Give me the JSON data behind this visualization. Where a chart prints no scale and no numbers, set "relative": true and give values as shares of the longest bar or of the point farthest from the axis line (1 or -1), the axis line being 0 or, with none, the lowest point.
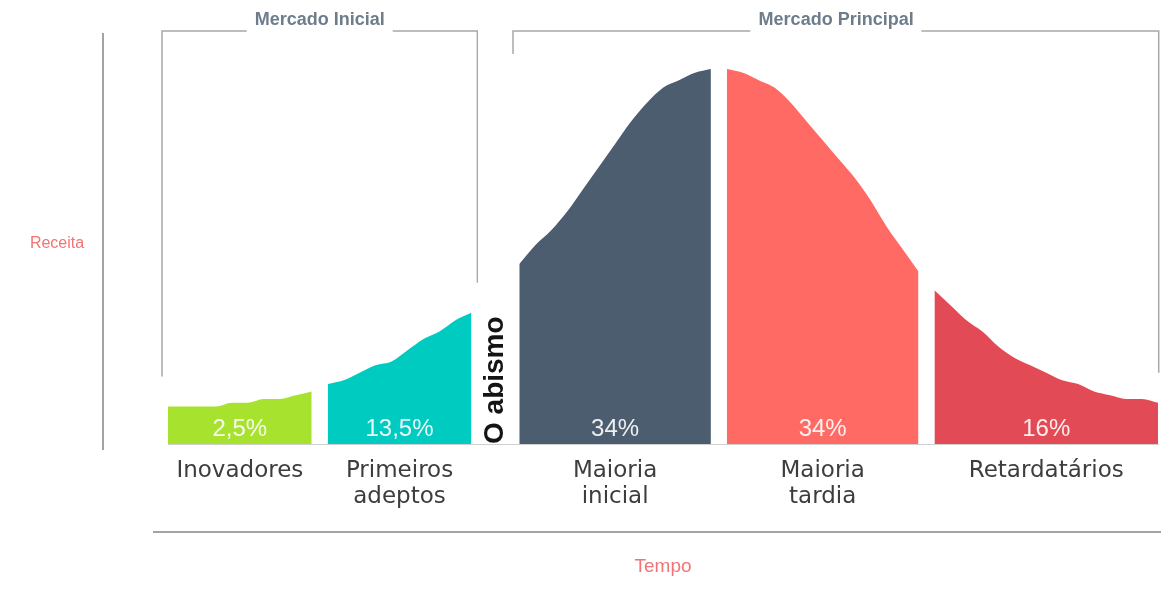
{
  "chart_data": {
    "type": "area",
    "relative": true,
    "categories": [
      null,
      null,
      null,
      null,
      null,
      null,
      null,
      null,
      null,
      null,
      null,
      null,
      null,
      null,
      null,
      null,
      null,
      null,
      null,
      null,
      null,
      null,
      null,
      null,
      null,
      null,
      null,
      null,
      null,
      null,
      null,
      null,
      null,
      null,
      null,
      null,
      null,
      null,
      null,
      null,
      null,
      null,
      null,
      null,
      null,
      null,
      null,
      null,
      null,
      null,
      null,
      null,
      null,
      null,
      null,
      null,
      null,
      null,
      null,
      null,
      null,
      null,
      null
    ],
    "series": [
      {
        "name": "Inovadores",
        "color": "#a6e22e",
        "values": [
          0.1,
          0.1,
          0.1,
          0.1,
          0.11,
          0.11,
          0.12,
          0.12,
          0.13,
          0.14,
          null,
          null,
          null,
          null,
          null,
          null,
          null,
          null,
          null,
          null,
          null,
          null,
          null,
          null,
          null,
          null,
          null,
          null,
          null,
          null,
          null,
          null,
          null,
          null,
          null,
          null,
          null,
          null,
          null,
          null,
          null,
          null,
          null,
          null,
          null,
          null,
          null,
          null,
          null,
          null,
          null,
          null,
          null,
          null,
          null,
          null,
          null,
          null,
          null,
          null,
          null,
          null,
          null
        ]
      },
      {
        "name": "Primeiros adeptos",
        "color": "#00cbc0",
        "values": [
          null,
          null,
          null,
          null,
          null,
          null,
          null,
          null,
          null,
          null,
          0.16,
          0.17,
          0.19,
          0.21,
          0.22,
          0.25,
          0.28,
          0.3,
          0.33,
          0.35,
          null,
          null,
          null,
          null,
          null,
          null,
          null,
          null,
          null,
          null,
          null,
          null,
          null,
          null,
          null,
          null,
          null,
          null,
          null,
          null,
          null,
          null,
          null,
          null,
          null,
          null,
          null,
          null,
          null,
          null,
          null,
          null,
          null,
          null,
          null,
          null,
          null,
          null,
          null,
          null,
          null,
          null,
          null
        ]
      },
      {
        "name": "Maioria inicial",
        "color": "#4c5d70",
        "values": [
          null,
          null,
          null,
          null,
          null,
          null,
          null,
          null,
          null,
          null,
          null,
          null,
          null,
          null,
          null,
          null,
          null,
          null,
          null,
          null,
          null,
          null,
          0.48,
          0.53,
          0.57,
          0.62,
          0.68,
          0.74,
          0.8,
          0.86,
          0.91,
          0.95,
          0.97,
          0.99,
          1,
          null,
          null,
          null,
          null,
          null,
          null,
          null,
          null,
          null,
          null,
          null,
          null,
          null,
          null,
          null,
          null,
          null,
          null,
          null,
          null,
          null,
          null,
          null,
          null,
          null,
          null,
          null,
          null
        ]
      },
      {
        "name": "Maioria tardia",
        "color": "#ff6a65",
        "values": [
          null,
          null,
          null,
          null,
          null,
          null,
          null,
          null,
          null,
          null,
          null,
          null,
          null,
          null,
          null,
          null,
          null,
          null,
          null,
          null,
          null,
          null,
          null,
          null,
          null,
          null,
          null,
          null,
          null,
          null,
          null,
          null,
          null,
          null,
          null,
          1,
          0.99,
          0.97,
          0.95,
          0.91,
          0.86,
          0.81,
          0.76,
          0.71,
          0.65,
          0.58,
          0.52,
          0.46,
          null,
          null,
          null,
          null,
          null,
          null,
          null,
          null,
          null,
          null,
          null,
          null,
          null,
          null,
          null
        ]
      },
      {
        "name": "Retardatários",
        "color": "#e24b55",
        "values": [
          null,
          null,
          null,
          null,
          null,
          null,
          null,
          null,
          null,
          null,
          null,
          null,
          null,
          null,
          null,
          null,
          null,
          null,
          null,
          null,
          null,
          null,
          null,
          null,
          null,
          null,
          null,
          null,
          null,
          null,
          null,
          null,
          null,
          null,
          null,
          null,
          null,
          null,
          null,
          null,
          null,
          null,
          null,
          null,
          null,
          null,
          null,
          null,
          0.41,
          0.37,
          0.33,
          0.3,
          0.26,
          0.23,
          0.21,
          0.19,
          0.17,
          0.16,
          0.14,
          0.13,
          0.12,
          0.12,
          0.11
        ]
      }
    ],
    "annotations": [
      "Mercado Inicial",
      "Mercado Principal",
      "O abismo",
      "2,5%",
      "13,5%",
      "34%",
      "34%",
      "16%",
      "Tempo",
      "Receita"
    ]
  }
}
